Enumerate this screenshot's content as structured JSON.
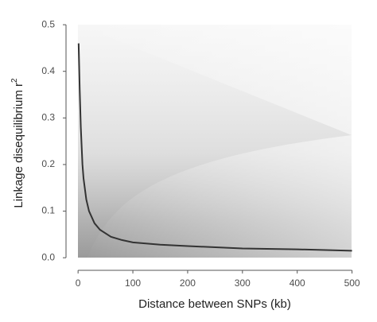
{
  "chart_data": {
    "type": "line",
    "xlabel": "Distance between SNPs (kb)",
    "ylabel": "Linkage disequilibrium r",
    "ylabel_superscript": "2",
    "x": [
      1,
      3,
      5,
      8,
      10,
      15,
      20,
      30,
      40,
      60,
      80,
      100,
      150,
      200,
      300,
      400,
      500
    ],
    "series": [
      {
        "color": "#333333",
        "values": [
          0.46,
          0.36,
          0.28,
          0.2,
          0.17,
          0.125,
          0.1,
          0.074,
          0.06,
          0.045,
          0.038,
          0.033,
          0.028,
          0.025,
          0.02,
          0.018,
          0.015
        ]
      }
    ],
    "xlim": [
      -22,
      518
    ],
    "ylim": [
      -0.027,
      0.507
    ],
    "xticks": [
      0,
      100,
      200,
      300,
      400,
      500
    ],
    "yticks": [
      {
        "value": 0,
        "label": "0.0"
      },
      0.1,
      0.2,
      0.3,
      0.4,
      0.5
    ]
  }
}
